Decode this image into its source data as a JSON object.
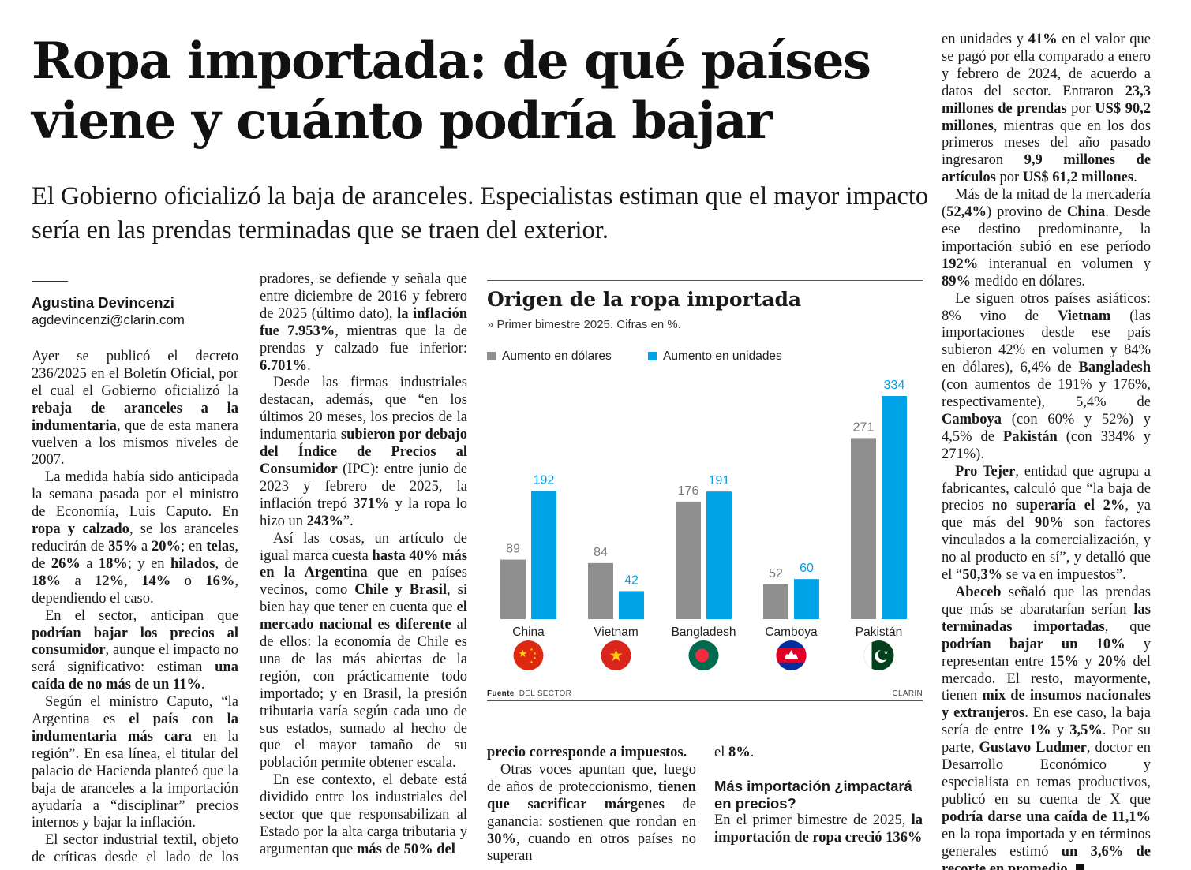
{
  "article": {
    "headline": "Ropa importada: de qué países viene y cuánto podría bajar",
    "subhead": "El Gobierno oficializó la baja de aranceles. Especialistas estiman que el mayor impacto sería en las prendas terminadas que se traen del exterior.",
    "author": "Agustina Devincenzi",
    "email": "agdevincenzi@clarin.com",
    "crosshead": "Más importación ¿impactará en precios?"
  },
  "chart": {
    "title": "Origen de la ropa importada",
    "subtitle": "» Primer bimestre 2025. Cifras en %.",
    "source_label": "Fuente",
    "source": "DEL SECTOR",
    "credit": "CLARIN"
  },
  "colors": {
    "dollars": "#8f8f8f",
    "units": "#00a2e8",
    "grid": "#d0d0d0",
    "rule": "#555555"
  },
  "chart_data": {
    "type": "bar",
    "title": "Origen de la ropa importada",
    "subtitle": "Primer bimestre 2025. Cifras en %.",
    "categories": [
      "China",
      "Vietnam",
      "Bangladesh",
      "Camboya",
      "Pakistán"
    ],
    "series": [
      {
        "name": "Aumento en dólares",
        "values": [
          89,
          84,
          176,
          52,
          271
        ]
      },
      {
        "name": "Aumento en unidades",
        "values": [
          192,
          42,
          191,
          60,
          334
        ]
      }
    ],
    "ylim": [
      0,
      334
    ],
    "grid": false,
    "legend": "top-left",
    "flags": [
      "china-flag-icon",
      "vietnam-flag-icon",
      "bangladesh-flag-icon",
      "cambodia-flag-icon",
      "pakistan-flag-icon"
    ]
  }
}
